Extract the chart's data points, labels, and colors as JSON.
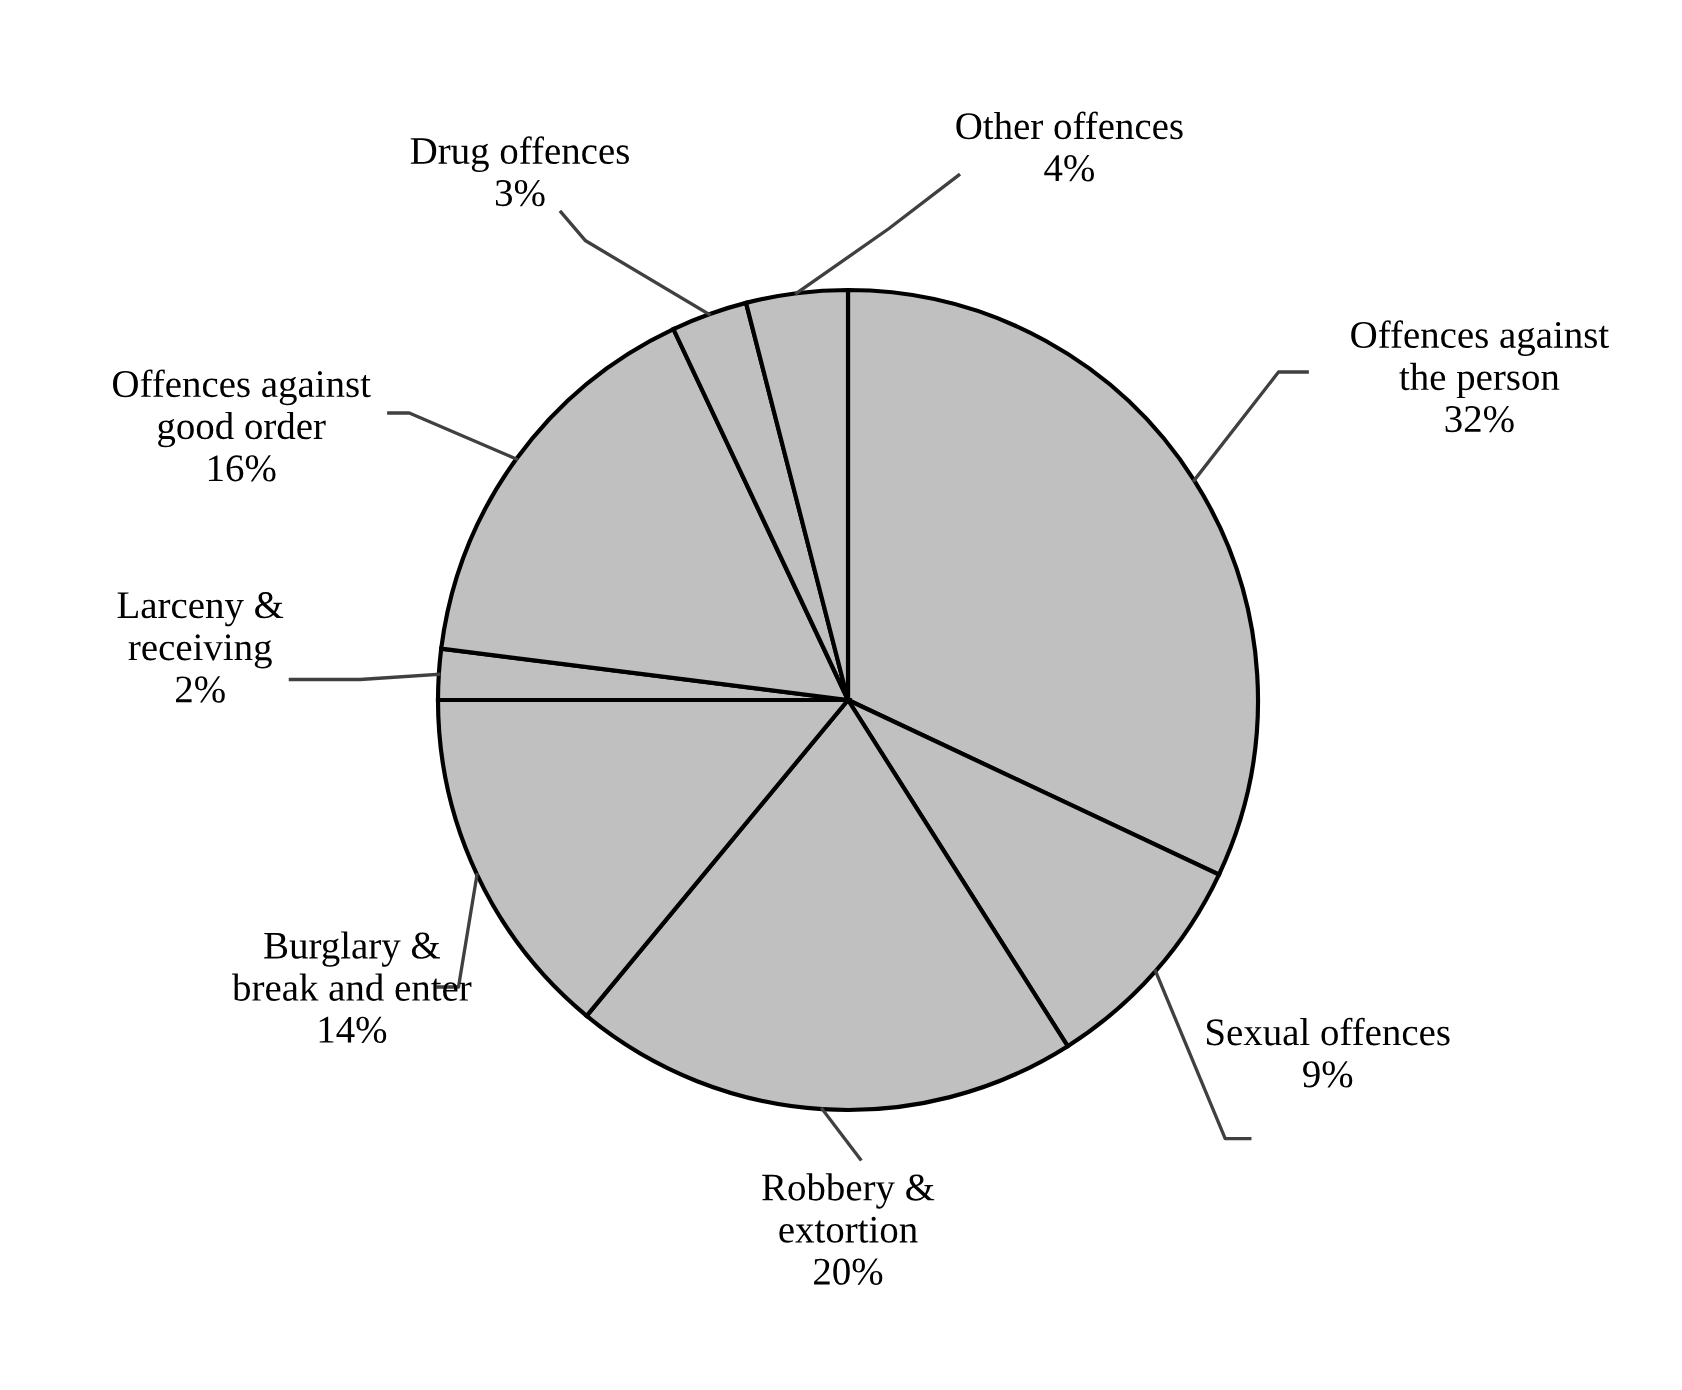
{
  "chart_data": {
    "type": "pie",
    "categories": [
      "Offences against\nthe person",
      "Sexual offences",
      "Robbery &\nextortion",
      "Burglary &\nbreak and enter",
      "Larceny &\nreceiving",
      "Offences against\ngood order",
      "Drug offences",
      "Other offences"
    ],
    "values": [
      32,
      9,
      20,
      14,
      2,
      16,
      3,
      4
    ],
    "colors": [
      "#c0c0c0",
      "#c0c0c0",
      "#c0c0c0",
      "#c0c0c0",
      "#c0c0c0",
      "#c0c0c0",
      "#c0c0c0",
      "#c0c0c0"
    ],
    "value_labels": [
      "32%",
      "9%",
      "20%",
      "14%",
      "2%",
      "16%",
      "3%",
      "4%"
    ]
  }
}
